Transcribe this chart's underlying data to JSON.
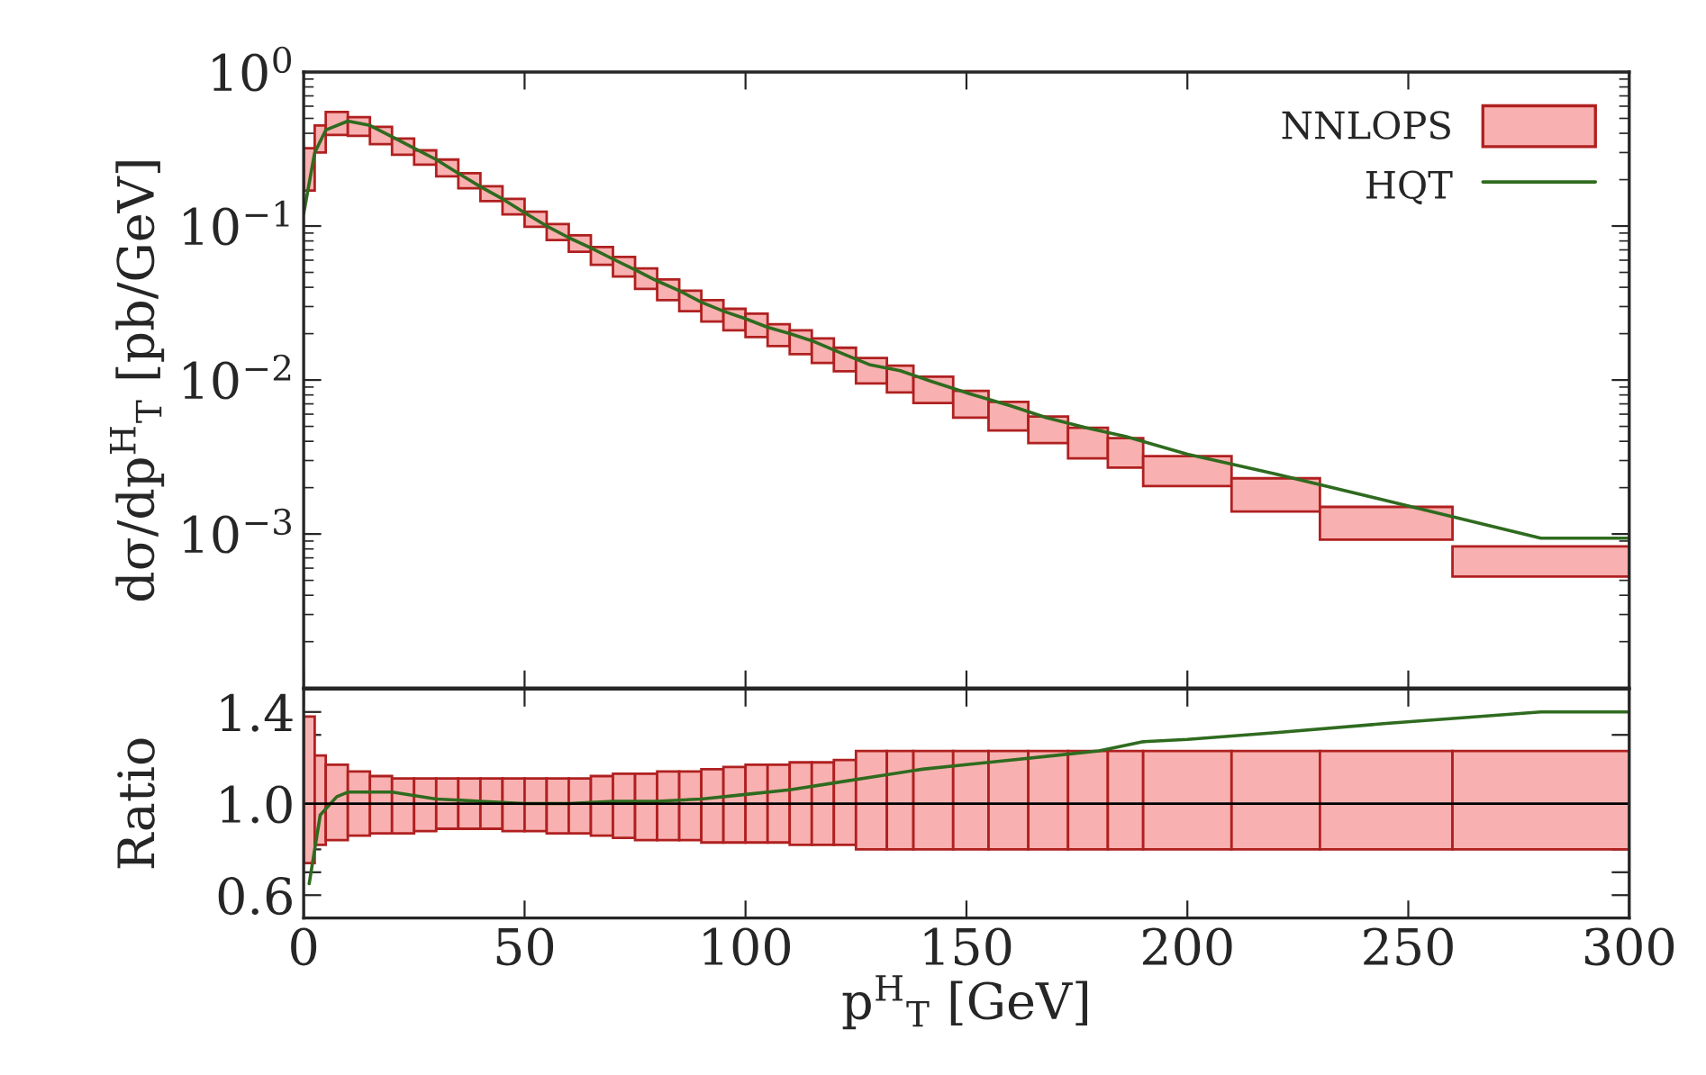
{
  "chart_data": [
    {
      "type": "histogram",
      "ylabel": "dσ/dp$^{H}$$_{T}$ [pb/GeV]",
      "xlim": [
        0,
        300
      ],
      "xticks": [
        0,
        50,
        100,
        150,
        200,
        250,
        300
      ],
      "tick_labels": "y",
      "log": true,
      "ylim": [
        0.0001,
        1
      ],
      "yticks": [
        {
          "value": 0.001,
          "label": "10$^{−3}$"
        },
        {
          "value": 0.01,
          "label": "10$^{−2}$"
        },
        {
          "value": 0.1,
          "label": "10$^{−1}$"
        },
        {
          "value": 1,
          "label": "10$^{0}$"
        }
      ],
      "legend": "top right",
      "series": [
        {
          "name": "NNLOPS",
          "color": "#f9b0b0",
          "bins": [
            0,
            2.5,
            5,
            10,
            15,
            20,
            25,
            30,
            35,
            40,
            45,
            50,
            55,
            60,
            65,
            70,
            75,
            80,
            85,
            90,
            95,
            100,
            105,
            110,
            115,
            120,
            125,
            132,
            138,
            147,
            155,
            164,
            173,
            182,
            190,
            210,
            230,
            260,
            300
          ],
          "values": [
            0.15,
            0.15,
            0.16,
            0.125,
            0.1,
            0.08,
            0.06,
            0.06,
            0.044,
            0.036,
            0.031,
            0.025,
            0.022,
            0.019,
            0.017,
            0.016,
            0.014,
            0.012,
            0.01,
            0.009,
            0.008,
            0.008,
            0.0064,
            0.0063,
            0.0057,
            0.0048,
            0.0044,
            0.0041,
            0.0034,
            0.0028,
            0.0025,
            0.0019,
            0.0018,
            0.0015,
            0.00115,
            0.0009,
            0.00058,
            0.0003
          ],
          "base": [
            0.17,
            0.3,
            0.39,
            0.385,
            0.34,
            0.29,
            0.25,
            0.21,
            0.176,
            0.145,
            0.119,
            0.099,
            0.081,
            0.068,
            0.056,
            0.047,
            0.039,
            0.033,
            0.028,
            0.024,
            0.021,
            0.019,
            0.0166,
            0.0147,
            0.0129,
            0.0114,
            0.0095,
            0.0083,
            0.0071,
            0.0057,
            0.0047,
            0.0039,
            0.0031,
            0.0027,
            0.00205,
            0.0014,
            0.00092,
            0.00053
          ]
        },
        {
          "name": "HQT",
          "type": "line",
          "color": "#2f6b1f",
          "x": [
            0,
            2.5,
            5,
            10,
            15,
            20,
            25,
            30,
            35,
            40,
            45,
            50,
            55,
            60,
            65,
            70,
            75,
            80,
            85,
            90,
            95,
            100,
            105,
            110,
            115,
            122,
            128,
            135,
            142,
            151,
            160,
            168,
            177,
            186,
            200,
            220,
            245,
            280,
            300
          ],
          "values": [
            0.12,
            0.3,
            0.42,
            0.48,
            0.45,
            0.38,
            0.32,
            0.27,
            0.22,
            0.18,
            0.15,
            0.122,
            0.1,
            0.084,
            0.072,
            0.061,
            0.052,
            0.044,
            0.038,
            0.032,
            0.028,
            0.025,
            0.022,
            0.02,
            0.018,
            0.0148,
            0.0126,
            0.0115,
            0.0098,
            0.0081,
            0.0068,
            0.0057,
            0.0049,
            0.0043,
            0.0033,
            0.00245,
            0.00165,
            0.00094,
            0.00094
          ]
        }
      ]
    },
    {
      "type": "histogram",
      "xlabel": "p$^{H}$$_{T}$ [GeV]",
      "ylabel": "Ratio",
      "xlim": [
        0,
        300
      ],
      "xticks": [
        0,
        50,
        100,
        150,
        200,
        250,
        300
      ],
      "ylim": [
        0.5,
        1.5
      ],
      "yticks": [
        {
          "value": 0.6,
          "label": "0.6"
        },
        {
          "value": 0.7,
          "label": null
        },
        {
          "value": 0.8,
          "label": null
        },
        {
          "value": 0.9,
          "label": null
        },
        {
          "value": 1,
          "label": "1.0"
        },
        {
          "value": 1.1,
          "label": null
        },
        {
          "value": 1.2,
          "label": null
        },
        {
          "value": 1.3,
          "label": null
        },
        {
          "value": 1.4,
          "label": "1.4"
        }
      ],
      "ref_lines": [
        {
          "axis": "y",
          "value": 1,
          "color": "#000000"
        }
      ],
      "series": [
        {
          "color": "#f9b0b0",
          "bins": [
            0,
            2.5,
            5,
            10,
            15,
            20,
            25,
            30,
            35,
            40,
            45,
            50,
            55,
            60,
            65,
            70,
            75,
            80,
            85,
            90,
            95,
            100,
            105,
            110,
            115,
            120,
            125,
            132,
            138,
            147,
            155,
            164,
            173,
            182,
            190,
            210,
            230,
            260,
            300
          ],
          "values": [
            0.64,
            0.39,
            0.33,
            0.28,
            0.25,
            0.24,
            0.23,
            0.22,
            0.22,
            0.22,
            0.23,
            0.23,
            0.24,
            0.24,
            0.26,
            0.28,
            0.29,
            0.3,
            0.3,
            0.32,
            0.33,
            0.34,
            0.34,
            0.36,
            0.36,
            0.37,
            0.43,
            0.43,
            0.43,
            0.43,
            0.43,
            0.43,
            0.43,
            0.43,
            0.43,
            0.43,
            0.43,
            0.43
          ],
          "base": [
            0.74,
            0.82,
            0.84,
            0.86,
            0.87,
            0.87,
            0.88,
            0.89,
            0.89,
            0.89,
            0.88,
            0.88,
            0.87,
            0.87,
            0.86,
            0.85,
            0.84,
            0.84,
            0.84,
            0.83,
            0.83,
            0.83,
            0.83,
            0.82,
            0.82,
            0.82,
            0.8,
            0.8,
            0.8,
            0.8,
            0.8,
            0.8,
            0.8,
            0.8,
            0.8,
            0.8,
            0.8,
            0.8
          ]
        },
        {
          "type": "line",
          "color": "#2f6b1f",
          "x": [
            1.25,
            3.75,
            7.5,
            10,
            20,
            30,
            40,
            50,
            60,
            70,
            80,
            90,
            100,
            110,
            120,
            130,
            140,
            150,
            160,
            170,
            180,
            190,
            200,
            220,
            245,
            280,
            300
          ],
          "values": [
            0.65,
            0.95,
            1.03,
            1.05,
            1.05,
            1.02,
            1.01,
            1.0,
            1.0,
            1.01,
            1.01,
            1.02,
            1.04,
            1.06,
            1.09,
            1.12,
            1.15,
            1.17,
            1.19,
            1.21,
            1.23,
            1.27,
            1.28,
            1.31,
            1.35,
            1.4,
            1.4
          ]
        }
      ]
    }
  ]
}
